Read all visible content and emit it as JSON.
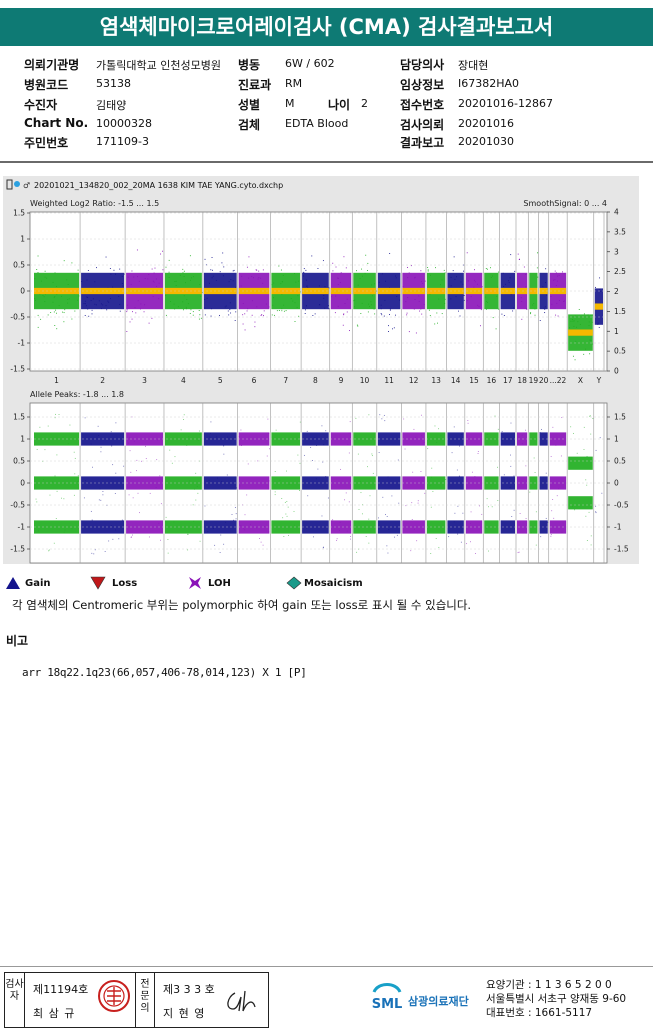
{
  "title": "염색체마이크로어레이검사 (CMA) 검사결과보고서",
  "info": {
    "hospital_label": "의뢰기관명",
    "hospital_value": "가톨릭대학교 인천성모병원",
    "ward_label": "병동",
    "ward_value": "6W / 602",
    "doctor_label": "담당의사",
    "doctor_value": "장대현",
    "code_label": "병원코드",
    "code_value": "53138",
    "dept_label": "진료과",
    "dept_value": "RM",
    "clinical_label": "임상정보",
    "clinical_value": "I67382HA0",
    "patient_label": "수진자",
    "patient_value": "김태양",
    "sex_label": "성별",
    "sex_value": "M",
    "age_label": "나이",
    "age_value": "2",
    "reception_label": "접수번호",
    "reception_value": "20201016-12867",
    "chart_label": "Chart No.",
    "chart_value": "10000328",
    "specimen_label": "검체",
    "specimen_value": "EDTA Blood",
    "request_label": "검사의뢰",
    "request_value": "20201016",
    "id_label": "주민번호",
    "id_value": "171109-3",
    "report_label": "결과보고",
    "report_value": "20201030"
  },
  "chart": {
    "filename": "20201021_134820_002_20MA 1638 KIM TAE YANG.cyto.dxchp",
    "top_title": "Weighted Log2 Ratio: -1.5 ... 1.5",
    "top_right_title": "SmoothSignal: 0 ... 4",
    "top_left_ticks": [
      "1.5",
      "1",
      "0.5",
      "0",
      "-0.5",
      "-1",
      "-1.5"
    ],
    "top_right_ticks": [
      "4",
      "3.5",
      "3",
      "2.5",
      "2",
      "1.5",
      "1",
      "0.5",
      "0"
    ],
    "chromosomes": [
      "1",
      "2",
      "3",
      "4",
      "5",
      "6",
      "7",
      "8",
      "9",
      "10",
      "11",
      "12",
      "13",
      "14",
      "15",
      "16",
      "17",
      "18",
      "19",
      "20",
      "...22",
      "X",
      "Y"
    ],
    "bottom_title": "Allele Peaks: -1.8 ... 1.8",
    "bottom_ticks": [
      "1.5",
      "1",
      "0.5",
      "0",
      "-0.5",
      "-1",
      "-1.5"
    ],
    "colors": {
      "green": "#1fae1f",
      "navy": "#14148c",
      "purple": "#8a12b8",
      "smooth": "#f5b800"
    }
  },
  "legend": {
    "gain": "Gain",
    "loss": "Loss",
    "loh": "LOH",
    "mosaicism": "Mosaicism"
  },
  "note": "각 염색체의 Centromeric 부위는 polymorphic 하여 gain 또는 loss로 표시 될 수 있습니다.",
  "remark_title": "비고",
  "remark_text": "arr 18q22.1q23(66,057,406-78,014,123) X 1 [P]",
  "footer": {
    "sign_label_1": "검사자",
    "sign_no_1": "제11194호",
    "sign_name_1": "최 삼 규",
    "sign_label_2": "전문의",
    "sign_no_2": "제3 3 3 호",
    "sign_name_2": "지 현 영",
    "org_abbr": "SML",
    "org_name": "삼광의료재단",
    "contact_1": "요양기관 : 1 1 3 6 5 2 0 0",
    "contact_2": "서울특별시 서초구 양재동 9-60",
    "contact_3": "대표번호 : 1661-5117"
  }
}
